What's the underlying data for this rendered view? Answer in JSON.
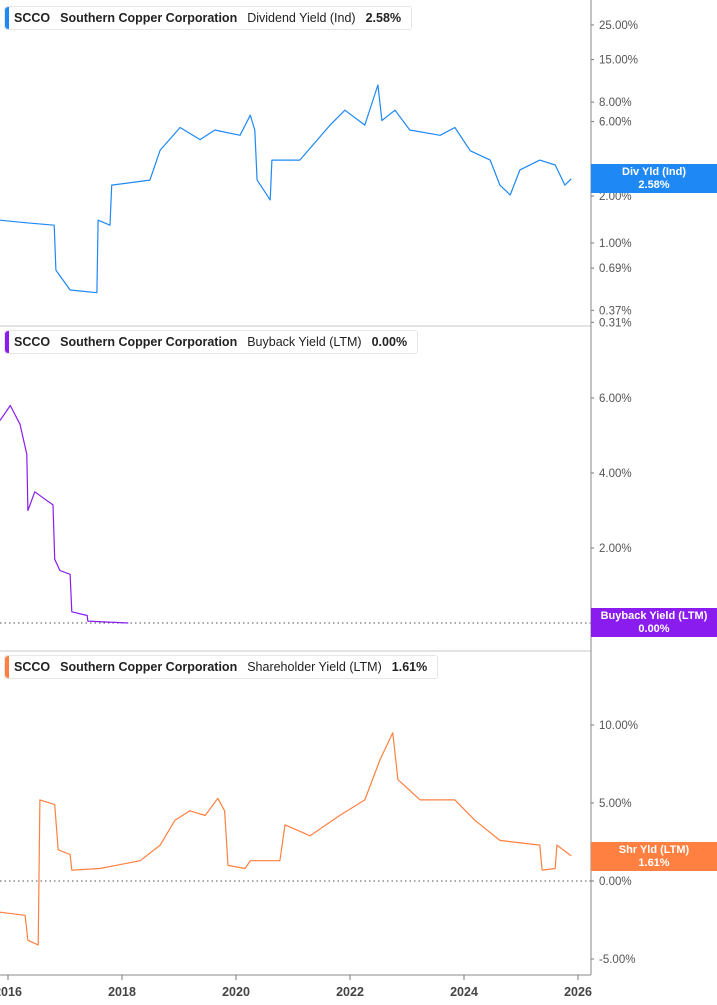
{
  "chart_data": [
    {
      "type": "line",
      "ticker": "SCCO",
      "company": "Southern Copper Corporation",
      "metric": "Dividend Yield (Ind)",
      "current_value": "2.58%",
      "tag_label": "Div Yld (Ind)",
      "color": "#1e88f5",
      "y_scale": "log",
      "ylim": [
        0.29,
        30
      ],
      "y_ticks": [
        "25.00%",
        "15.00%",
        "8.00%",
        "6.00%",
        "3.00%",
        "2.00%",
        "1.00%",
        "0.69%",
        "0.37%",
        "0.31%"
      ],
      "y_tick_values": [
        25,
        15,
        8,
        6,
        3,
        2,
        1,
        0.69,
        0.37,
        0.31
      ],
      "series": [
        [
          2015.86,
          1.4
        ],
        [
          2016.3,
          1.35
        ],
        [
          2016.81,
          1.3
        ],
        [
          2016.84,
          0.67
        ],
        [
          2017.09,
          0.5
        ],
        [
          2017.56,
          0.48
        ],
        [
          2017.58,
          1.4
        ],
        [
          2017.79,
          1.3
        ],
        [
          2017.82,
          2.35
        ],
        [
          2018.49,
          2.53
        ],
        [
          2018.67,
          3.94
        ],
        [
          2019.02,
          5.5
        ],
        [
          2019.37,
          4.6
        ],
        [
          2019.63,
          5.3
        ],
        [
          2020.07,
          4.9
        ],
        [
          2020.25,
          6.6
        ],
        [
          2020.33,
          5.3
        ],
        [
          2020.37,
          2.53
        ],
        [
          2020.6,
          1.89
        ],
        [
          2020.63,
          3.4
        ],
        [
          2021.12,
          3.4
        ],
        [
          2021.65,
          5.7
        ],
        [
          2021.91,
          7.1
        ],
        [
          2022.26,
          5.7
        ],
        [
          2022.49,
          10.3
        ],
        [
          2022.56,
          6.1
        ],
        [
          2022.79,
          7.1
        ],
        [
          2023.05,
          5.3
        ],
        [
          2023.58,
          4.9
        ],
        [
          2023.84,
          5.5
        ],
        [
          2024.11,
          3.9
        ],
        [
          2024.46,
          3.4
        ],
        [
          2024.63,
          2.35
        ],
        [
          2024.81,
          2.03
        ],
        [
          2024.98,
          2.94
        ],
        [
          2025.33,
          3.4
        ],
        [
          2025.6,
          3.16
        ],
        [
          2025.77,
          2.35
        ],
        [
          2025.88,
          2.58
        ]
      ]
    },
    {
      "type": "line",
      "ticker": "SCCO",
      "company": "Southern Copper Corporation",
      "metric": "Buyback Yield (LTM)",
      "current_value": "0.00%",
      "tag_label": "Buyback Yield (LTM)",
      "color": "#8a1cf0",
      "y_scale": "linear",
      "ylim": [
        -0.4,
        8.1
      ],
      "y_ticks": [
        "6.00%",
        "4.00%",
        "2.00%"
      ],
      "y_tick_values": [
        6,
        4,
        2
      ],
      "zero_line": "dotted",
      "series": [
        [
          2015.86,
          5.4
        ],
        [
          2016.04,
          5.8
        ],
        [
          2016.21,
          5.3
        ],
        [
          2016.33,
          4.5
        ],
        [
          2016.35,
          3.0
        ],
        [
          2016.47,
          3.5
        ],
        [
          2016.65,
          3.3
        ],
        [
          2016.79,
          3.15
        ],
        [
          2016.82,
          1.7
        ],
        [
          2016.91,
          1.4
        ],
        [
          2017.09,
          1.3
        ],
        [
          2017.12,
          0.3
        ],
        [
          2017.39,
          0.2
        ],
        [
          2017.4,
          0.05
        ],
        [
          2018.11,
          0
        ]
      ]
    },
    {
      "type": "line",
      "ticker": "SCCO",
      "company": "Southern Copper Corporation",
      "metric": "Shareholder Yield (LTM)",
      "current_value": "1.61%",
      "tag_label": "Shr Yld (LTM)",
      "color": "#ff8040",
      "y_scale": "linear",
      "ylim": [
        -6,
        14.8
      ],
      "y_ticks": [
        "10.00%",
        "5.00%",
        "0.00%",
        "-5.00%"
      ],
      "y_tick_values": [
        10,
        5,
        0,
        -5
      ],
      "zero_line": "dotted",
      "series": [
        [
          2015.86,
          -2.0
        ],
        [
          2016.3,
          -2.2
        ],
        [
          2016.35,
          -3.8
        ],
        [
          2016.53,
          -4.1
        ],
        [
          2016.56,
          5.2
        ],
        [
          2016.82,
          4.9
        ],
        [
          2016.88,
          2.0
        ],
        [
          2017.09,
          1.7
        ],
        [
          2017.12,
          0.7
        ],
        [
          2017.61,
          0.8
        ],
        [
          2018.32,
          1.3
        ],
        [
          2018.67,
          2.3
        ],
        [
          2018.93,
          3.9
        ],
        [
          2019.19,
          4.5
        ],
        [
          2019.46,
          4.2
        ],
        [
          2019.68,
          5.3
        ],
        [
          2019.8,
          4.5
        ],
        [
          2019.86,
          1.0
        ],
        [
          2020.16,
          0.8
        ],
        [
          2020.25,
          1.3
        ],
        [
          2020.77,
          1.3
        ],
        [
          2020.86,
          3.6
        ],
        [
          2021.3,
          2.9
        ],
        [
          2021.82,
          4.2
        ],
        [
          2022.26,
          5.2
        ],
        [
          2022.53,
          7.8
        ],
        [
          2022.75,
          9.5
        ],
        [
          2022.84,
          6.5
        ],
        [
          2023.23,
          5.2
        ],
        [
          2023.84,
          5.2
        ],
        [
          2024.19,
          3.9
        ],
        [
          2024.63,
          2.6
        ],
        [
          2025.33,
          2.3
        ],
        [
          2025.37,
          0.7
        ],
        [
          2025.6,
          0.8
        ],
        [
          2025.63,
          2.3
        ],
        [
          2025.88,
          1.61
        ]
      ]
    }
  ],
  "x_axis": {
    "type": "date",
    "ticks": [
      "2016",
      "2018",
      "2020",
      "2022",
      "2024",
      "2026"
    ],
    "tick_values": [
      2016,
      2018,
      2020,
      2022,
      2024,
      2026
    ]
  }
}
